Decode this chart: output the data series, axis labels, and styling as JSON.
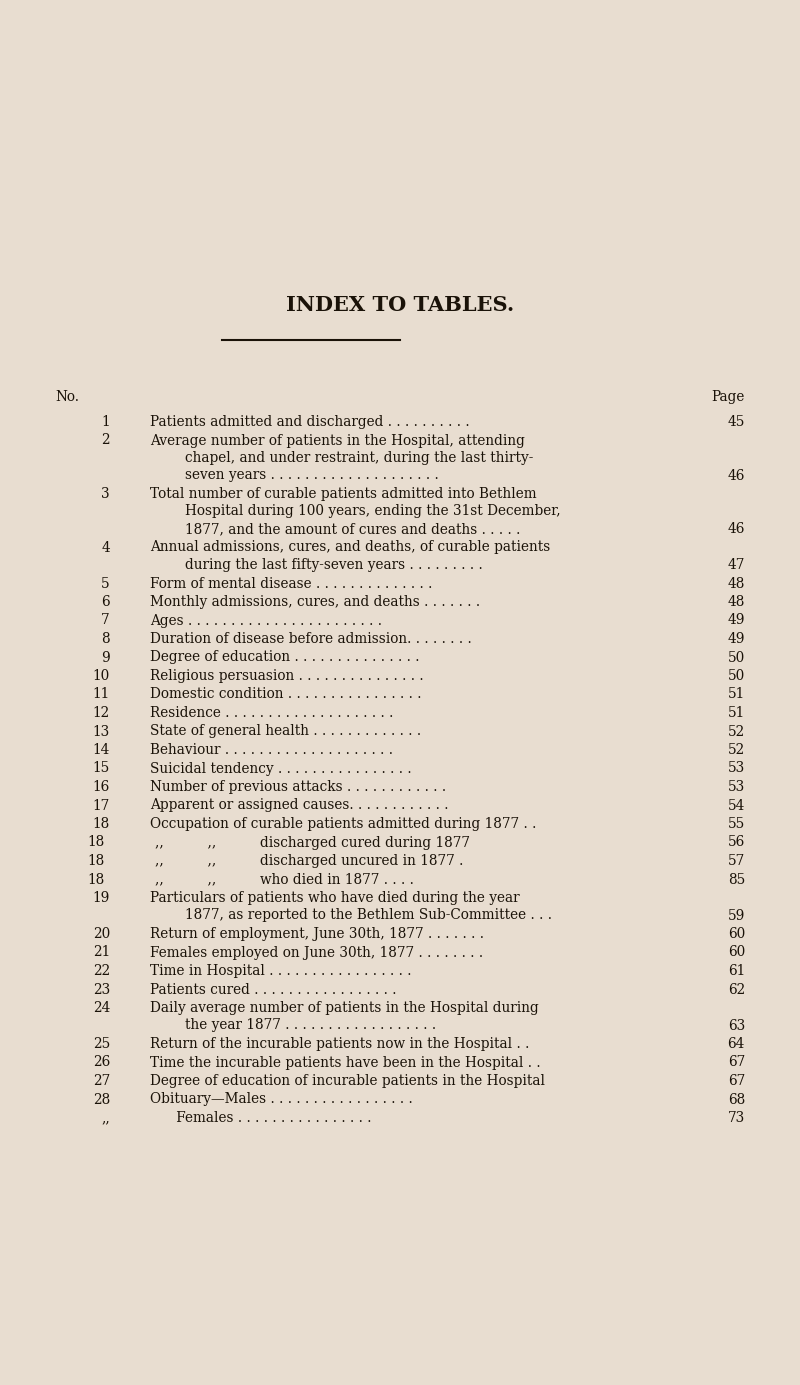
{
  "title": "INDEX TO TABLES.",
  "bg_color": "#e8ddd0",
  "text_color": "#1a1208",
  "title_fontsize": 15,
  "body_fontsize": 9.8,
  "header_no": "No.",
  "header_page": "Page",
  "entries": [
    {
      "no": "1",
      "lines": [
        "Patients admitted and discharged . . . . . . . . . ."
      ],
      "page": "45",
      "page_line": 0
    },
    {
      "no": "2",
      "lines": [
        "Average number of patients in the Hospital, attending",
        "chapel, and under restraint, during the last thirty-",
        "seven years . . . . . . . . . . . . . . . . . . . ."
      ],
      "page": "46",
      "page_line": 2
    },
    {
      "no": "3",
      "lines": [
        "Total number of curable patients admitted into Bethlem",
        "Hospital during 100 years, ending the 31st December,",
        "1877, and the amount of cures and deaths . . . . ."
      ],
      "page": "46",
      "page_line": 2
    },
    {
      "no": "4",
      "lines": [
        "Annual admissions, cures, and deaths, of curable patients",
        "during the last fifty-seven years . . . . . . . . ."
      ],
      "page": "47",
      "page_line": 1
    },
    {
      "no": "5",
      "lines": [
        "Form of mental disease . . . . . . . . . . . . . ."
      ],
      "page": "48",
      "page_line": 0
    },
    {
      "no": "6",
      "lines": [
        "Monthly admissions, cures, and deaths . . . . . . ."
      ],
      "page": "48",
      "page_line": 0
    },
    {
      "no": "7",
      "lines": [
        "Ages . . . . . . . . . . . . . . . . . . . . . . ."
      ],
      "page": "49",
      "page_line": 0
    },
    {
      "no": "8",
      "lines": [
        "Duration of disease before admission. . . . . . . ."
      ],
      "page": "49",
      "page_line": 0
    },
    {
      "no": "9",
      "lines": [
        "Degree of education . . . . . . . . . . . . . . ."
      ],
      "page": "50",
      "page_line": 0
    },
    {
      "no": "10",
      "lines": [
        "Religious persuasion . . . . . . . . . . . . . . ."
      ],
      "page": "50",
      "page_line": 0
    },
    {
      "no": "11",
      "lines": [
        "Domestic condition . . . . . . . . . . . . . . . ."
      ],
      "page": "51",
      "page_line": 0
    },
    {
      "no": "12",
      "lines": [
        "Residence . . . . . . . . . . . . . . . . . . . ."
      ],
      "page": "51",
      "page_line": 0
    },
    {
      "no": "13",
      "lines": [
        "State of general health . . . . . . . . . . . . ."
      ],
      "page": "52",
      "page_line": 0
    },
    {
      "no": "14",
      "lines": [
        "Behaviour . . . . . . . . . . . . . . . . . . . ."
      ],
      "page": "52",
      "page_line": 0
    },
    {
      "no": "15",
      "lines": [
        "Suicidal tendency . . . . . . . . . . . . . . . ."
      ],
      "page": "53",
      "page_line": 0
    },
    {
      "no": "16",
      "lines": [
        "Number of previous attacks . . . . . . . . . . . ."
      ],
      "page": "53",
      "page_line": 0
    },
    {
      "no": "17",
      "lines": [
        "Apparent or assigned causes. . . . . . . . . . . ."
      ],
      "page": "54",
      "page_line": 0
    },
    {
      "no": "18",
      "lines": [
        "Occupation of curable patients admitted during 1877 . ."
      ],
      "page": "55",
      "page_line": 0
    },
    {
      "no": "18",
      "lines": [
        ",,          ,,          discharged cured during 1877"
      ],
      "page": "56",
      "page_line": 0,
      "sub": true
    },
    {
      "no": "18",
      "lines": [
        ",,          ,,          discharged uncured in 1877 ."
      ],
      "page": "57",
      "page_line": 0,
      "sub": true
    },
    {
      "no": "18",
      "lines": [
        ",,          ,,          who died in 1877 . . . ."
      ],
      "page": "85",
      "page_line": 0,
      "sub": true
    },
    {
      "no": "19",
      "lines": [
        "Particulars of patients who have died during the year",
        "1877, as reported to the Bethlem Sub-Committee . . ."
      ],
      "page": "59",
      "page_line": 1
    },
    {
      "no": "20",
      "lines": [
        "Return of employment, June 30th, 1877 . . . . . . ."
      ],
      "page": "60",
      "page_line": 0
    },
    {
      "no": "21",
      "lines": [
        "Females employed on June 30th, 1877 . . . . . . . ."
      ],
      "page": "60",
      "page_line": 0
    },
    {
      "no": "22",
      "lines": [
        "Time in Hospital . . . . . . . . . . . . . . . . ."
      ],
      "page": "61",
      "page_line": 0
    },
    {
      "no": "23",
      "lines": [
        "Patients cured . . . . . . . . . . . . . . . . ."
      ],
      "page": "62",
      "page_line": 0
    },
    {
      "no": "24",
      "lines": [
        "Daily average number of patients in the Hospital during",
        "the year 1877 . . . . . . . . . . . . . . . . . ."
      ],
      "page": "63",
      "page_line": 1
    },
    {
      "no": "25",
      "lines": [
        "Return of the incurable patients now in the Hospital . ."
      ],
      "page": "64",
      "page_line": 0
    },
    {
      "no": "26",
      "lines": [
        "Time the incurable patients have been in the Hospital . ."
      ],
      "page": "67",
      "page_line": 0
    },
    {
      "no": "27",
      "lines": [
        "Degree of education of incurable patients in the Hospital"
      ],
      "page": "67",
      "page_line": 0
    },
    {
      "no": "28",
      "lines": [
        "Obituary—Males . . . . . . . . . . . . . . . . ."
      ],
      "page": "68",
      "page_line": 0
    },
    {
      "no": ",,",
      "lines": [
        "      Females . . . . . . . . . . . . . . . ."
      ],
      "page": "73",
      "page_line": 0
    }
  ]
}
